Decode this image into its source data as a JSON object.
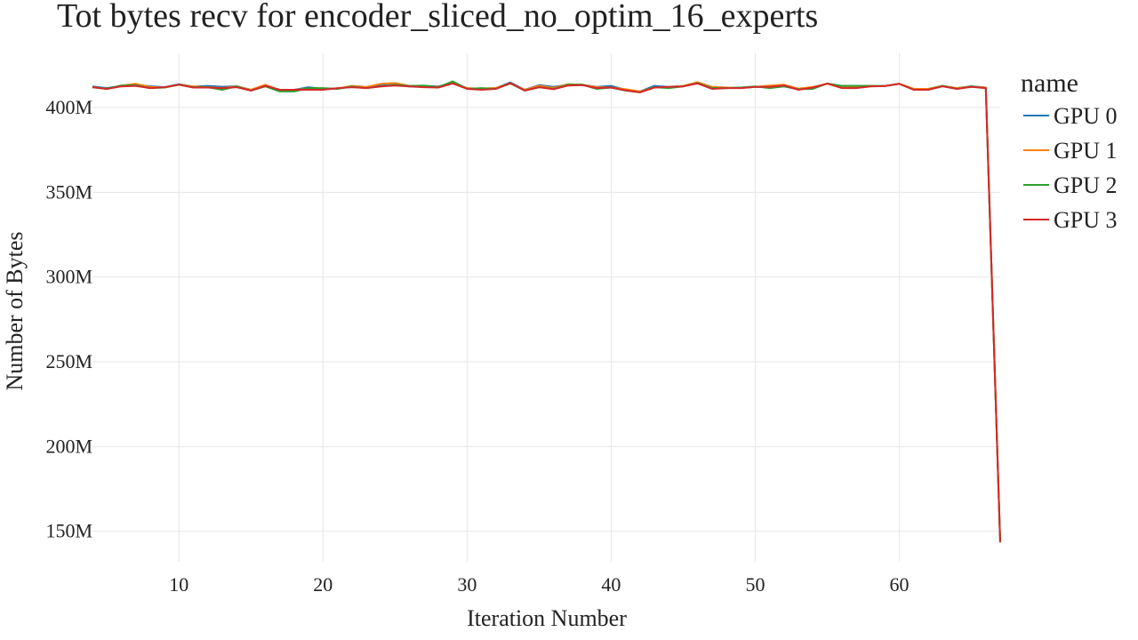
{
  "chart_data": {
    "type": "line",
    "title": "Tot bytes recv for encoder_sliced_no_optim_16_experts",
    "xlabel": "Iteration Number",
    "ylabel": "Number of Bytes",
    "xlim": [
      4,
      67
    ],
    "ylim": [
      132000000,
      432000000
    ],
    "x_ticks": [
      10,
      20,
      30,
      40,
      50,
      60
    ],
    "y_ticks": [
      150000000,
      200000000,
      250000000,
      300000000,
      350000000,
      400000000
    ],
    "y_tick_labels": [
      "150M",
      "200M",
      "250M",
      "300M",
      "350M",
      "400M"
    ],
    "grid": true,
    "legend_title": "name",
    "legend_position": "right",
    "x": [
      4,
      5,
      6,
      7,
      8,
      9,
      10,
      11,
      12,
      13,
      14,
      15,
      16,
      17,
      18,
      19,
      20,
      21,
      22,
      23,
      24,
      25,
      26,
      27,
      28,
      29,
      30,
      31,
      32,
      33,
      34,
      35,
      36,
      37,
      38,
      39,
      40,
      41,
      42,
      43,
      44,
      45,
      46,
      47,
      48,
      49,
      50,
      51,
      52,
      53,
      54,
      55,
      56,
      57,
      58,
      59,
      60,
      61,
      62,
      63,
      64,
      65,
      66,
      67
    ],
    "series": [
      {
        "name": "GPU 0",
        "color": "#1f77b4",
        "values": [
          412.5,
          411.5,
          412.8,
          413.2,
          412.6,
          412.0,
          413.8,
          412.4,
          412.8,
          412.3,
          412.6,
          410.5,
          413.0,
          410.5,
          410.5,
          412.0,
          411.0,
          411.2,
          412.2,
          412.0,
          413.0,
          413.5,
          412.5,
          412.8,
          412.5,
          414.5,
          411.5,
          411.0,
          411.5,
          414.8,
          410.5,
          413.2,
          412.2,
          413.5,
          413.5,
          412.2,
          412.8,
          410.5,
          409.5,
          412.8,
          412.2,
          412.8,
          414.5,
          411.8,
          411.5,
          411.8,
          412.3,
          412.0,
          412.5,
          410.8,
          412.0,
          414.0,
          412.8,
          412.8,
          412.8,
          412.7,
          414.0,
          411.0,
          411.0,
          412.8,
          411.5,
          412.6,
          411.8,
          143.5
        ]
      },
      {
        "name": "GPU 1",
        "color": "#ff7f0e",
        "values": [
          412.0,
          411.0,
          413.0,
          414.0,
          412.2,
          411.8,
          413.5,
          412.5,
          412.0,
          411.5,
          412.5,
          410.5,
          413.5,
          410.0,
          410.5,
          411.0,
          411.2,
          411.2,
          412.8,
          412.2,
          414.0,
          414.5,
          412.8,
          412.5,
          412.2,
          414.8,
          411.5,
          411.2,
          411.6,
          414.2,
          410.5,
          412.8,
          411.6,
          413.8,
          413.5,
          412.0,
          411.8,
          410.8,
          409.5,
          411.8,
          412.0,
          412.8,
          415.0,
          412.2,
          411.8,
          411.5,
          412.2,
          413.0,
          413.5,
          411.2,
          412.2,
          414.0,
          411.8,
          412.0,
          412.8,
          412.7,
          414.0,
          411.0,
          411.0,
          412.8,
          411.5,
          412.4,
          411.8,
          143.5
        ]
      },
      {
        "name": "GPU 2",
        "color": "#2ca02c",
        "values": [
          412.0,
          411.0,
          413.0,
          413.2,
          411.5,
          411.8,
          413.5,
          412.0,
          412.0,
          410.5,
          412.5,
          410.0,
          412.5,
          409.5,
          409.5,
          411.5,
          411.5,
          411.0,
          412.5,
          411.5,
          412.5,
          413.5,
          412.8,
          413.0,
          412.0,
          415.5,
          411.0,
          411.5,
          411.0,
          414.2,
          410.0,
          412.0,
          411.0,
          413.5,
          413.5,
          411.0,
          411.8,
          410.0,
          409.0,
          412.0,
          411.5,
          412.5,
          414.5,
          411.5,
          411.5,
          411.8,
          412.5,
          411.5,
          412.5,
          410.8,
          411.0,
          414.2,
          412.8,
          412.8,
          412.8,
          412.7,
          414.0,
          410.5,
          410.5,
          412.8,
          411.0,
          412.4,
          411.5,
          143.5
        ]
      },
      {
        "name": "GPU 3",
        "color": "#d62728",
        "values": [
          412.0,
          411.0,
          412.5,
          412.8,
          411.5,
          412.0,
          413.5,
          411.8,
          411.8,
          411.5,
          412.0,
          410.0,
          412.8,
          410.5,
          410.5,
          410.5,
          410.5,
          411.5,
          412.0,
          411.5,
          412.5,
          413.0,
          412.5,
          412.0,
          411.8,
          414.2,
          411.0,
          410.5,
          411.0,
          414.5,
          410.0,
          412.0,
          410.8,
          413.0,
          413.2,
          411.5,
          411.8,
          410.2,
          409.0,
          411.8,
          412.2,
          412.5,
          414.2,
          411.0,
          411.5,
          411.5,
          412.2,
          412.2,
          413.0,
          410.5,
          411.8,
          414.2,
          411.5,
          411.5,
          412.5,
          412.7,
          414.0,
          410.5,
          410.5,
          412.5,
          411.0,
          412.2,
          411.5,
          143.5
        ]
      }
    ]
  }
}
